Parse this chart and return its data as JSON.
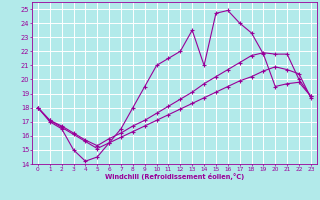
{
  "xlabel": "Windchill (Refroidissement éolien,°C)",
  "bg_color": "#b2eaea",
  "grid_color": "#ffffff",
  "line_color": "#990099",
  "xlim": [
    -0.5,
    23.5
  ],
  "ylim": [
    14,
    25.5
  ],
  "xticks": [
    0,
    1,
    2,
    3,
    4,
    5,
    6,
    7,
    8,
    9,
    10,
    11,
    12,
    13,
    14,
    15,
    16,
    17,
    18,
    19,
    20,
    21,
    22,
    23
  ],
  "yticks": [
    14,
    15,
    16,
    17,
    18,
    19,
    20,
    21,
    22,
    23,
    24,
    25
  ],
  "line1_x": [
    0,
    1,
    2,
    3,
    4,
    5,
    6,
    7,
    8,
    9,
    10,
    11,
    12,
    13,
    14,
    15,
    16,
    17,
    18,
    19,
    20,
    21,
    22,
    23
  ],
  "line1_y": [
    18,
    17,
    16.5,
    15,
    14.2,
    14.5,
    15.5,
    16.5,
    18.0,
    19.5,
    21.0,
    21.5,
    22.0,
    23.5,
    21.0,
    24.7,
    24.9,
    24.0,
    23.3,
    21.8,
    19.5,
    19.7,
    19.8,
    18.8
  ],
  "line2_x": [
    0,
    1,
    2,
    3,
    4,
    5,
    6,
    7,
    8,
    9,
    10,
    11,
    12,
    13,
    14,
    15,
    16,
    17,
    18,
    19,
    20,
    21,
    22,
    23
  ],
  "line2_y": [
    18,
    17.1,
    16.7,
    16.2,
    15.7,
    15.3,
    15.8,
    16.2,
    16.7,
    17.1,
    17.6,
    18.1,
    18.6,
    19.1,
    19.7,
    20.2,
    20.7,
    21.2,
    21.7,
    21.9,
    21.8,
    21.8,
    20.0,
    18.8
  ],
  "line3_x": [
    0,
    1,
    2,
    3,
    4,
    5,
    6,
    7,
    8,
    9,
    10,
    11,
    12,
    13,
    14,
    15,
    16,
    17,
    18,
    19,
    20,
    21,
    22,
    23
  ],
  "line3_y": [
    18,
    17.1,
    16.6,
    16.1,
    15.6,
    15.1,
    15.5,
    15.9,
    16.3,
    16.7,
    17.1,
    17.5,
    17.9,
    18.3,
    18.7,
    19.1,
    19.5,
    19.9,
    20.2,
    20.6,
    20.9,
    20.7,
    20.4,
    18.7
  ]
}
